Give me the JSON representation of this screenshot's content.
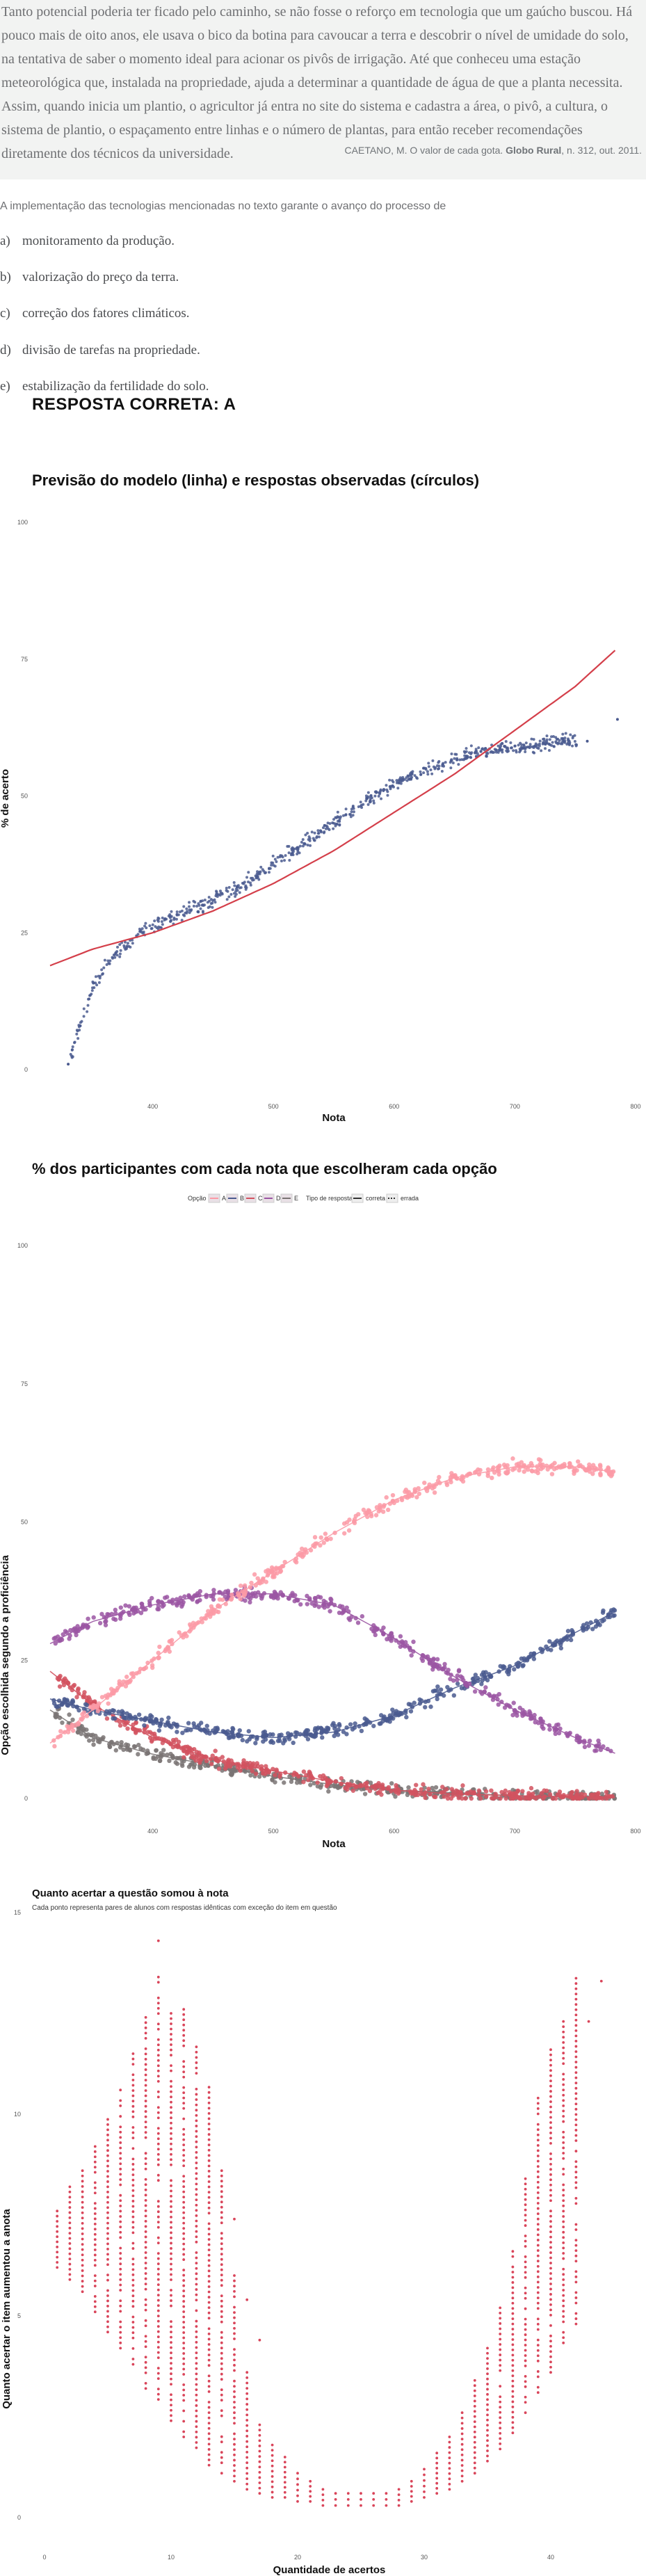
{
  "text": {
    "quote": "Tanto potencial poderia ter ficado pelo caminho, se não fosse o reforço em tecnologia que um gaúcho buscou. Há pouco mais de oito anos, ele usava o bico da botina para cavoucar a terra e descobrir o nível de umidade do solo, na tentativa de saber o momento ideal para acionar os pivôs de irrigação. Até que conheceu uma estação meteorológica que, instalada na propriedade, ajuda a determinar a quantidade de água de que a planta necessita. Assim, quando inicia um plantio, o agricultor já entra no site do sistema e cadastra a área, o pivô, a cultura, o sistema de plantio, o espaçamento entre linhas e o número de plantas, para então receber recomendações diretamente dos técnicos da universidade.",
    "source_a": "CAETANO, M. O valor de cada gota. ",
    "source_b": "Globo Rural",
    "source_c": ", n. 312, out. 2011.",
    "question": "A implementação das tecnologias mencionadas no texto garante o avanço do processo de",
    "answer": "RESPOSTA CORRETA: A"
  },
  "alternatives": [
    {
      "letter": "a)",
      "text": "monitoramento da produção."
    },
    {
      "letter": "b)",
      "text": "valorização do preço da terra."
    },
    {
      "letter": "c)",
      "text": "correção dos fatores climáticos."
    },
    {
      "letter": "d)",
      "text": "divisão de tarefas na propriedade."
    },
    {
      "letter": "e)",
      "text": "estabilização da fertilidade do solo."
    }
  ],
  "colors": {
    "A": "#fb9aa6",
    "B": "#4a5a8f",
    "C": "#d2525f",
    "D": "#9b56a3",
    "E": "#7a7474",
    "model": "#d43f4a",
    "dots3": "#d9455a"
  },
  "chart_data": [
    {
      "type": "scatter",
      "title": "Previsão do modelo (linha) e respostas observadas (círculos)",
      "xlabel": "Nota",
      "ylabel": "% de acerto",
      "xlim": [
        300,
        800
      ],
      "ylim": [
        0,
        100
      ],
      "xticks": [
        400,
        500,
        600,
        700,
        800
      ],
      "yticks": [
        0,
        25,
        50,
        75,
        100
      ],
      "grid": false,
      "observed": {
        "x": [
          330,
          340,
          350,
          360,
          375,
          390,
          410,
          430,
          450,
          470,
          490,
          510,
          530,
          550,
          570,
          590,
          610,
          630,
          650,
          670,
          690,
          710,
          730,
          760,
          785
        ],
        "y": [
          1,
          8,
          15,
          19,
          22,
          25,
          27,
          29,
          31,
          33,
          36,
          39,
          42,
          45,
          48,
          51,
          53,
          55,
          57,
          58,
          59,
          59,
          60,
          60,
          64
        ]
      },
      "model": {
        "x": [
          315,
          350,
          400,
          450,
          500,
          550,
          600,
          650,
          700,
          750,
          785
        ],
        "y": [
          19,
          22,
          25,
          29,
          34,
          40,
          47,
          54,
          62,
          70,
          77
        ]
      }
    },
    {
      "type": "scatter",
      "title": "% dos participantes com cada nota que escolheram cada opção",
      "xlabel": "Nota",
      "ylabel": "Opção escolhida segundo a proficiência",
      "xlim": [
        300,
        800
      ],
      "ylim": [
        0,
        100
      ],
      "xticks": [
        400,
        500,
        600,
        700,
        800
      ],
      "yticks": [
        0,
        25,
        50,
        75,
        100
      ],
      "legend": {
        "option_title": "Opção",
        "options": [
          "A",
          "B",
          "C",
          "D",
          "E"
        ],
        "type_title": "Tipo de resposta",
        "types": [
          "correta",
          "errada"
        ],
        "placement": "top"
      },
      "x": [
        315,
        350,
        400,
        450,
        500,
        550,
        600,
        650,
        700,
        750,
        785
      ],
      "series": [
        {
          "name": "A",
          "values": [
            10,
            16,
            25,
            34,
            41,
            48,
            54,
            58,
            60,
            60,
            59
          ]
        },
        {
          "name": "B",
          "values": [
            18,
            16,
            14,
            12,
            11,
            12,
            15,
            20,
            24,
            30,
            34
          ]
        },
        {
          "name": "C",
          "values": [
            23,
            17,
            11,
            7,
            5,
            3,
            1.5,
            0.8,
            0.5,
            0.3,
            0.2
          ]
        },
        {
          "name": "D",
          "values": [
            28,
            32,
            35,
            37,
            37,
            35,
            29,
            22,
            16,
            11,
            8
          ]
        },
        {
          "name": "E",
          "values": [
            16,
            11,
            8,
            6,
            4,
            2.5,
            1.5,
            1,
            0.5,
            0.3,
            0.2
          ]
        }
      ]
    },
    {
      "type": "scatter",
      "title": "Quanto acertar a questão somou à nota",
      "subtitle": "Cada ponto representa pares de alunos com respostas idênticas com exceção do item em questão",
      "xlabel": "Quantidade de acertos",
      "ylabel": "Quanto acertar o item aumentou a anota",
      "xlim": [
        0,
        45
      ],
      "ylim": [
        0,
        15
      ],
      "xticks": [
        0,
        10,
        20,
        30,
        40
      ],
      "yticks": [
        0,
        5,
        10,
        15
      ],
      "columns": [
        {
          "x": 1,
          "low": 6.2,
          "high": 7.6
        },
        {
          "x": 2,
          "low": 5.9,
          "high": 8.2
        },
        {
          "x": 3,
          "low": 5.6,
          "high": 8.6
        },
        {
          "x": 4,
          "low": 5.1,
          "high": 9.2
        },
        {
          "x": 5,
          "low": 4.6,
          "high": 10.0
        },
        {
          "x": 6,
          "low": 4.2,
          "high": 10.6
        },
        {
          "x": 7,
          "low": 3.8,
          "high": 11.5
        },
        {
          "x": 8,
          "low": 3.2,
          "high": 12.4
        },
        {
          "x": 9,
          "low": 2.8,
          "high": 13.4
        },
        {
          "x": 10,
          "low": 2.4,
          "high": 12.5
        },
        {
          "x": 11,
          "low": 2.0,
          "high": 12.6
        },
        {
          "x": 12,
          "low": 1.6,
          "high": 11.8
        },
        {
          "x": 13,
          "low": 1.3,
          "high": 10.8
        },
        {
          "x": 14,
          "low": 1.1,
          "high": 8.6
        },
        {
          "x": 15,
          "low": 0.9,
          "high": 6.0
        },
        {
          "x": 16,
          "low": 0.7,
          "high": 3.6
        },
        {
          "x": 17,
          "low": 0.6,
          "high": 2.3
        },
        {
          "x": 18,
          "low": 0.5,
          "high": 1.8
        },
        {
          "x": 19,
          "low": 0.5,
          "high": 1.5
        },
        {
          "x": 20,
          "low": 0.4,
          "high": 1.1
        },
        {
          "x": 21,
          "low": 0.4,
          "high": 0.9
        },
        {
          "x": 22,
          "low": 0.3,
          "high": 0.7
        },
        {
          "x": 23,
          "low": 0.3,
          "high": 0.6
        },
        {
          "x": 24,
          "low": 0.3,
          "high": 0.6
        },
        {
          "x": 25,
          "low": 0.3,
          "high": 0.6
        },
        {
          "x": 26,
          "low": 0.3,
          "high": 0.6
        },
        {
          "x": 27,
          "low": 0.3,
          "high": 0.6
        },
        {
          "x": 28,
          "low": 0.3,
          "high": 0.7
        },
        {
          "x": 29,
          "low": 0.4,
          "high": 0.9
        },
        {
          "x": 30,
          "low": 0.5,
          "high": 1.2
        },
        {
          "x": 31,
          "low": 0.6,
          "high": 1.6
        },
        {
          "x": 32,
          "low": 0.7,
          "high": 2.0
        },
        {
          "x": 33,
          "low": 0.9,
          "high": 2.6
        },
        {
          "x": 34,
          "low": 1.1,
          "high": 3.4
        },
        {
          "x": 35,
          "low": 1.4,
          "high": 4.2
        },
        {
          "x": 36,
          "low": 1.7,
          "high": 5.2
        },
        {
          "x": 37,
          "low": 2.1,
          "high": 6.6
        },
        {
          "x": 38,
          "low": 2.6,
          "high": 8.4
        },
        {
          "x": 39,
          "low": 3.1,
          "high": 10.4
        },
        {
          "x": 40,
          "low": 3.6,
          "high": 11.6
        },
        {
          "x": 41,
          "low": 4.2,
          "high": 12.3
        },
        {
          "x": 42,
          "low": 4.8,
          "high": 13.5
        }
      ]
    }
  ]
}
